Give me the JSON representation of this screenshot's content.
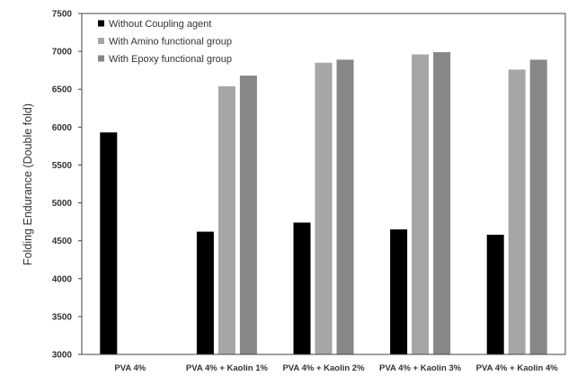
{
  "chart_data": {
    "type": "bar",
    "title": "",
    "xlabel": "",
    "ylabel": "Folding Endurance (Double fold)",
    "ylim": [
      3000,
      7500
    ],
    "yticks": [
      3000,
      3500,
      4000,
      4500,
      5000,
      5500,
      6000,
      6500,
      7000,
      7500
    ],
    "grid": false,
    "legend_position": "top-left",
    "categories": [
      "PVA 4%",
      "PVA 4% + Kaolin 1%",
      "PVA 4% + Kaolin 2%",
      "PVA 4% + Kaolin 3%",
      "PVA 4% + Kaolin 4%"
    ],
    "series": [
      {
        "name": "Without Coupling agent",
        "color": "#000000",
        "values": [
          5930,
          4620,
          4740,
          4650,
          4580
        ]
      },
      {
        "name": "With Amino functional group",
        "color": "#a6a6a6",
        "values": [
          null,
          6540,
          6850,
          6960,
          6760
        ]
      },
      {
        "name": "With Epoxy functional group",
        "color": "#878787",
        "values": [
          null,
          6680,
          6890,
          6990,
          6890
        ]
      }
    ]
  }
}
